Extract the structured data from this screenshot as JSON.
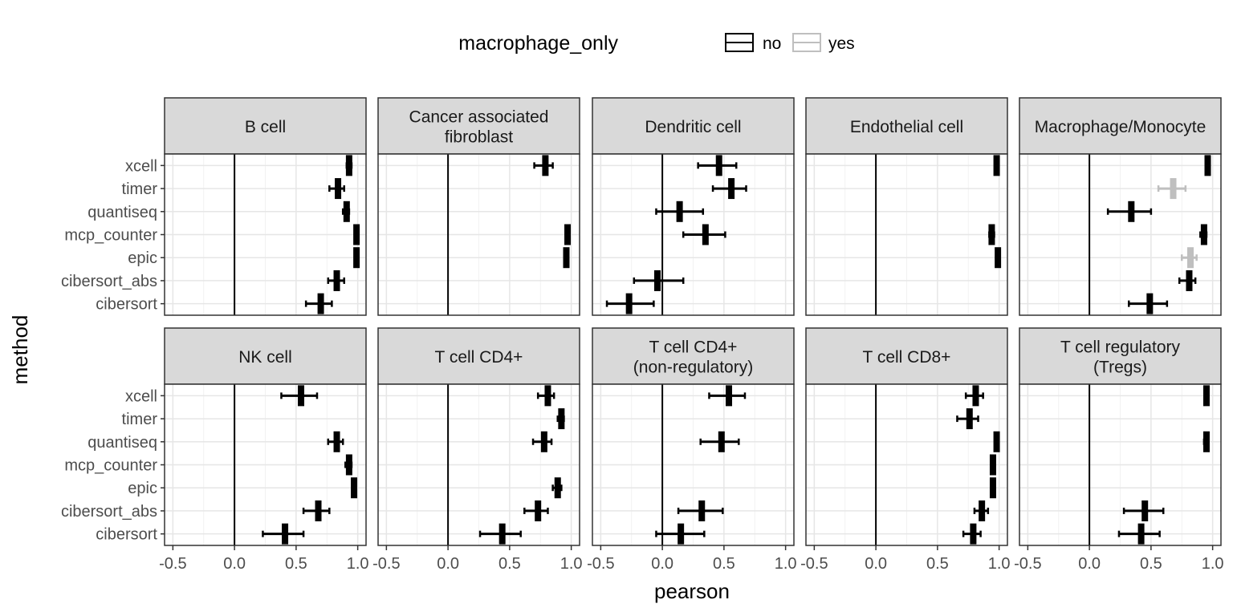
{
  "chart_data": {
    "type": "errorbar-facet",
    "xlabel": "pearson",
    "ylabel": "method",
    "xlim": [
      -0.5,
      1.0
    ],
    "x_ticks": [
      "-0.5",
      "0.0",
      "0.5",
      "1.0"
    ],
    "methods": [
      "xcell",
      "timer",
      "quantiseq",
      "mcp_counter",
      "epic",
      "cibersort_abs",
      "cibersort"
    ],
    "legend": {
      "title": "macrophage_only",
      "placement": "top",
      "items": [
        {
          "label": "no",
          "color": "#000000"
        },
        {
          "label": "yes",
          "color": "#bfbfbf"
        }
      ]
    },
    "grid": true,
    "panels": [
      {
        "title": [
          "B cell"
        ],
        "points": [
          {
            "method": "xcell",
            "x": 0.93,
            "lo": 0.91,
            "hi": 0.95,
            "macrophage_only": "no"
          },
          {
            "method": "timer",
            "x": 0.84,
            "lo": 0.77,
            "hi": 0.89,
            "macrophage_only": "no"
          },
          {
            "method": "quantiseq",
            "x": 0.91,
            "lo": 0.88,
            "hi": 0.93,
            "macrophage_only": "no"
          },
          {
            "method": "mcp_counter",
            "x": 0.99,
            "lo": 0.98,
            "hi": 1.0,
            "macrophage_only": "no"
          },
          {
            "method": "epic",
            "x": 0.99,
            "lo": 0.98,
            "hi": 1.0,
            "macrophage_only": "no"
          },
          {
            "method": "cibersort_abs",
            "x": 0.83,
            "lo": 0.76,
            "hi": 0.89,
            "macrophage_only": "no"
          },
          {
            "method": "cibersort",
            "x": 0.7,
            "lo": 0.58,
            "hi": 0.79,
            "macrophage_only": "no"
          }
        ]
      },
      {
        "title": [
          "Cancer associated",
          "fibroblast"
        ],
        "points": [
          {
            "method": "xcell",
            "x": 0.79,
            "lo": 0.7,
            "hi": 0.85,
            "macrophage_only": "no"
          },
          {
            "method": "mcp_counter",
            "x": 0.97,
            "lo": 0.96,
            "hi": 0.98,
            "macrophage_only": "no"
          },
          {
            "method": "epic",
            "x": 0.96,
            "lo": 0.95,
            "hi": 0.97,
            "macrophage_only": "no"
          }
        ]
      },
      {
        "title": [
          "Dendritic cell"
        ],
        "points": [
          {
            "method": "xcell",
            "x": 0.46,
            "lo": 0.29,
            "hi": 0.6,
            "macrophage_only": "no"
          },
          {
            "method": "timer",
            "x": 0.56,
            "lo": 0.41,
            "hi": 0.68,
            "macrophage_only": "no"
          },
          {
            "method": "quantiseq",
            "x": 0.14,
            "lo": -0.05,
            "hi": 0.33,
            "macrophage_only": "no"
          },
          {
            "method": "mcp_counter",
            "x": 0.35,
            "lo": 0.17,
            "hi": 0.51,
            "macrophage_only": "no"
          },
          {
            "method": "cibersort_abs",
            "x": -0.04,
            "lo": -0.23,
            "hi": 0.17,
            "macrophage_only": "no"
          },
          {
            "method": "cibersort",
            "x": -0.27,
            "lo": -0.45,
            "hi": -0.07,
            "macrophage_only": "no"
          }
        ]
      },
      {
        "title": [
          "Endothelial cell"
        ],
        "points": [
          {
            "method": "xcell",
            "x": 0.98,
            "lo": 0.97,
            "hi": 0.99,
            "macrophage_only": "no"
          },
          {
            "method": "mcp_counter",
            "x": 0.94,
            "lo": 0.92,
            "hi": 0.96,
            "macrophage_only": "no"
          },
          {
            "method": "epic",
            "x": 0.99,
            "lo": 0.98,
            "hi": 1.0,
            "macrophage_only": "no"
          }
        ]
      },
      {
        "title": [
          "Macrophage/Monocyte"
        ],
        "points": [
          {
            "method": "xcell",
            "x": 0.96,
            "lo": 0.95,
            "hi": 0.97,
            "macrophage_only": "no"
          },
          {
            "method": "timer",
            "x": 0.68,
            "lo": 0.56,
            "hi": 0.78,
            "macrophage_only": "yes"
          },
          {
            "method": "quantiseq",
            "x": 0.34,
            "lo": 0.15,
            "hi": 0.5,
            "macrophage_only": "no"
          },
          {
            "method": "mcp_counter",
            "x": 0.93,
            "lo": 0.9,
            "hi": 0.95,
            "macrophage_only": "no"
          },
          {
            "method": "epic",
            "x": 0.82,
            "lo": 0.75,
            "hi": 0.87,
            "macrophage_only": "yes"
          },
          {
            "method": "cibersort_abs",
            "x": 0.81,
            "lo": 0.73,
            "hi": 0.86,
            "macrophage_only": "no"
          },
          {
            "method": "cibersort",
            "x": 0.49,
            "lo": 0.32,
            "hi": 0.63,
            "macrophage_only": "no"
          }
        ]
      },
      {
        "title": [
          "NK cell"
        ],
        "points": [
          {
            "method": "xcell",
            "x": 0.54,
            "lo": 0.38,
            "hi": 0.67,
            "macrophage_only": "no"
          },
          {
            "method": "quantiseq",
            "x": 0.83,
            "lo": 0.76,
            "hi": 0.88,
            "macrophage_only": "no"
          },
          {
            "method": "mcp_counter",
            "x": 0.93,
            "lo": 0.9,
            "hi": 0.95,
            "macrophage_only": "no"
          },
          {
            "method": "epic",
            "x": 0.97,
            "lo": 0.96,
            "hi": 0.98,
            "macrophage_only": "no"
          },
          {
            "method": "cibersort_abs",
            "x": 0.68,
            "lo": 0.56,
            "hi": 0.77,
            "macrophage_only": "no"
          },
          {
            "method": "cibersort",
            "x": 0.41,
            "lo": 0.23,
            "hi": 0.56,
            "macrophage_only": "no"
          }
        ]
      },
      {
        "title": [
          "T cell CD4+"
        ],
        "points": [
          {
            "method": "xcell",
            "x": 0.81,
            "lo": 0.73,
            "hi": 0.86,
            "macrophage_only": "no"
          },
          {
            "method": "timer",
            "x": 0.92,
            "lo": 0.89,
            "hi": 0.94,
            "macrophage_only": "no"
          },
          {
            "method": "quantiseq",
            "x": 0.78,
            "lo": 0.69,
            "hi": 0.84,
            "macrophage_only": "no"
          },
          {
            "method": "epic",
            "x": 0.89,
            "lo": 0.85,
            "hi": 0.92,
            "macrophage_only": "no"
          },
          {
            "method": "cibersort_abs",
            "x": 0.73,
            "lo": 0.62,
            "hi": 0.81,
            "macrophage_only": "no"
          },
          {
            "method": "cibersort",
            "x": 0.44,
            "lo": 0.26,
            "hi": 0.59,
            "macrophage_only": "no"
          }
        ]
      },
      {
        "title": [
          "T cell CD4+",
          "(non-regulatory)"
        ],
        "points": [
          {
            "method": "xcell",
            "x": 0.54,
            "lo": 0.38,
            "hi": 0.67,
            "macrophage_only": "no"
          },
          {
            "method": "quantiseq",
            "x": 0.48,
            "lo": 0.31,
            "hi": 0.62,
            "macrophage_only": "no"
          },
          {
            "method": "cibersort_abs",
            "x": 0.32,
            "lo": 0.13,
            "hi": 0.49,
            "macrophage_only": "no"
          },
          {
            "method": "cibersort",
            "x": 0.15,
            "lo": -0.05,
            "hi": 0.34,
            "macrophage_only": "no"
          }
        ]
      },
      {
        "title": [
          "T cell CD8+"
        ],
        "points": [
          {
            "method": "xcell",
            "x": 0.81,
            "lo": 0.73,
            "hi": 0.87,
            "macrophage_only": "no"
          },
          {
            "method": "timer",
            "x": 0.76,
            "lo": 0.66,
            "hi": 0.83,
            "macrophage_only": "no"
          },
          {
            "method": "quantiseq",
            "x": 0.98,
            "lo": 0.97,
            "hi": 0.99,
            "macrophage_only": "no"
          },
          {
            "method": "mcp_counter",
            "x": 0.95,
            "lo": 0.94,
            "hi": 0.96,
            "macrophage_only": "no"
          },
          {
            "method": "epic",
            "x": 0.95,
            "lo": 0.94,
            "hi": 0.96,
            "macrophage_only": "no"
          },
          {
            "method": "cibersort_abs",
            "x": 0.86,
            "lo": 0.8,
            "hi": 0.91,
            "macrophage_only": "no"
          },
          {
            "method": "cibersort",
            "x": 0.79,
            "lo": 0.71,
            "hi": 0.85,
            "macrophage_only": "no"
          }
        ]
      },
      {
        "title": [
          "T cell regulatory",
          "(Tregs)"
        ],
        "points": [
          {
            "method": "xcell",
            "x": 0.95,
            "lo": 0.94,
            "hi": 0.96,
            "macrophage_only": "no"
          },
          {
            "method": "quantiseq",
            "x": 0.95,
            "lo": 0.93,
            "hi": 0.96,
            "macrophage_only": "no"
          },
          {
            "method": "cibersort_abs",
            "x": 0.45,
            "lo": 0.28,
            "hi": 0.6,
            "macrophage_only": "no"
          },
          {
            "method": "cibersort",
            "x": 0.42,
            "lo": 0.24,
            "hi": 0.57,
            "macrophage_only": "no"
          }
        ]
      }
    ]
  }
}
